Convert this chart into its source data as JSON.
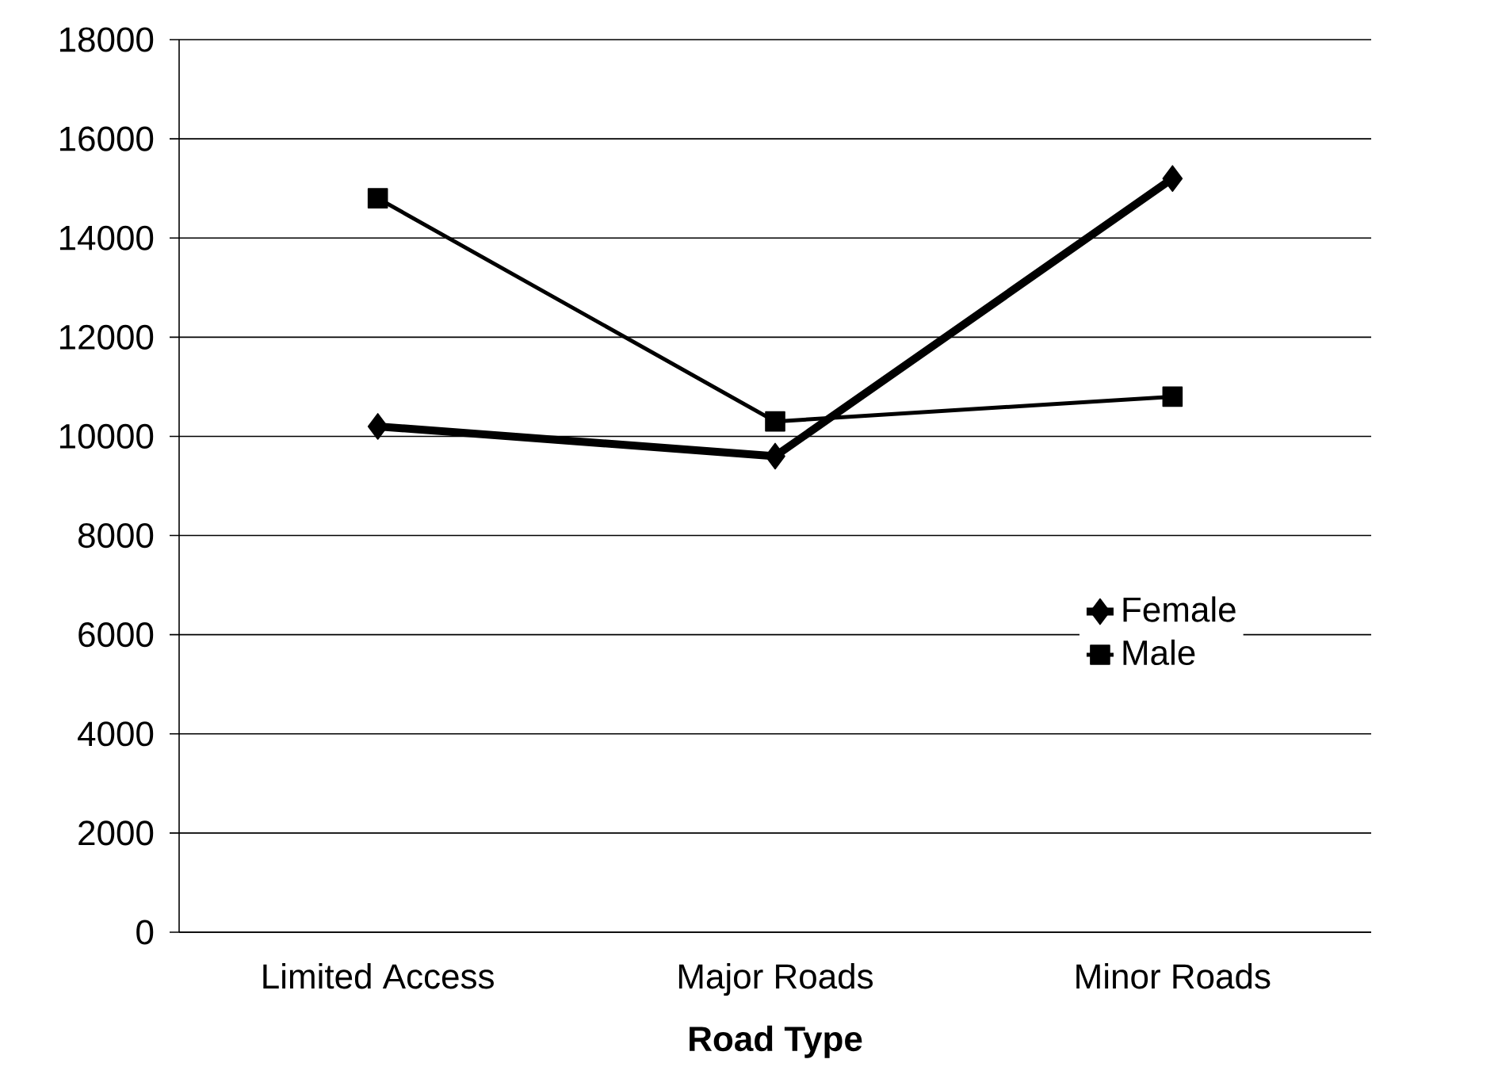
{
  "chart_data": {
    "type": "line",
    "xlabel": "**Road Type**",
    "categories": [
      "Limited Access",
      "Major Roads",
      "Minor Roads"
    ],
    "series": [
      {
        "name": "Female",
        "color": "#000000",
        "marker": "diamond",
        "values": [
          10200,
          9600,
          15200
        ]
      },
      {
        "name": "Male",
        "color": "#000000",
        "marker": "square",
        "values": [
          14800,
          10300,
          10800
        ]
      }
    ],
    "ylim": [
      0,
      18000
    ],
    "yticks": [
      0,
      2000,
      4000,
      6000,
      8000,
      10000,
      12000,
      14000,
      16000,
      18000
    ],
    "grid": "y",
    "legend": "right",
    "line_style": "solid"
  }
}
